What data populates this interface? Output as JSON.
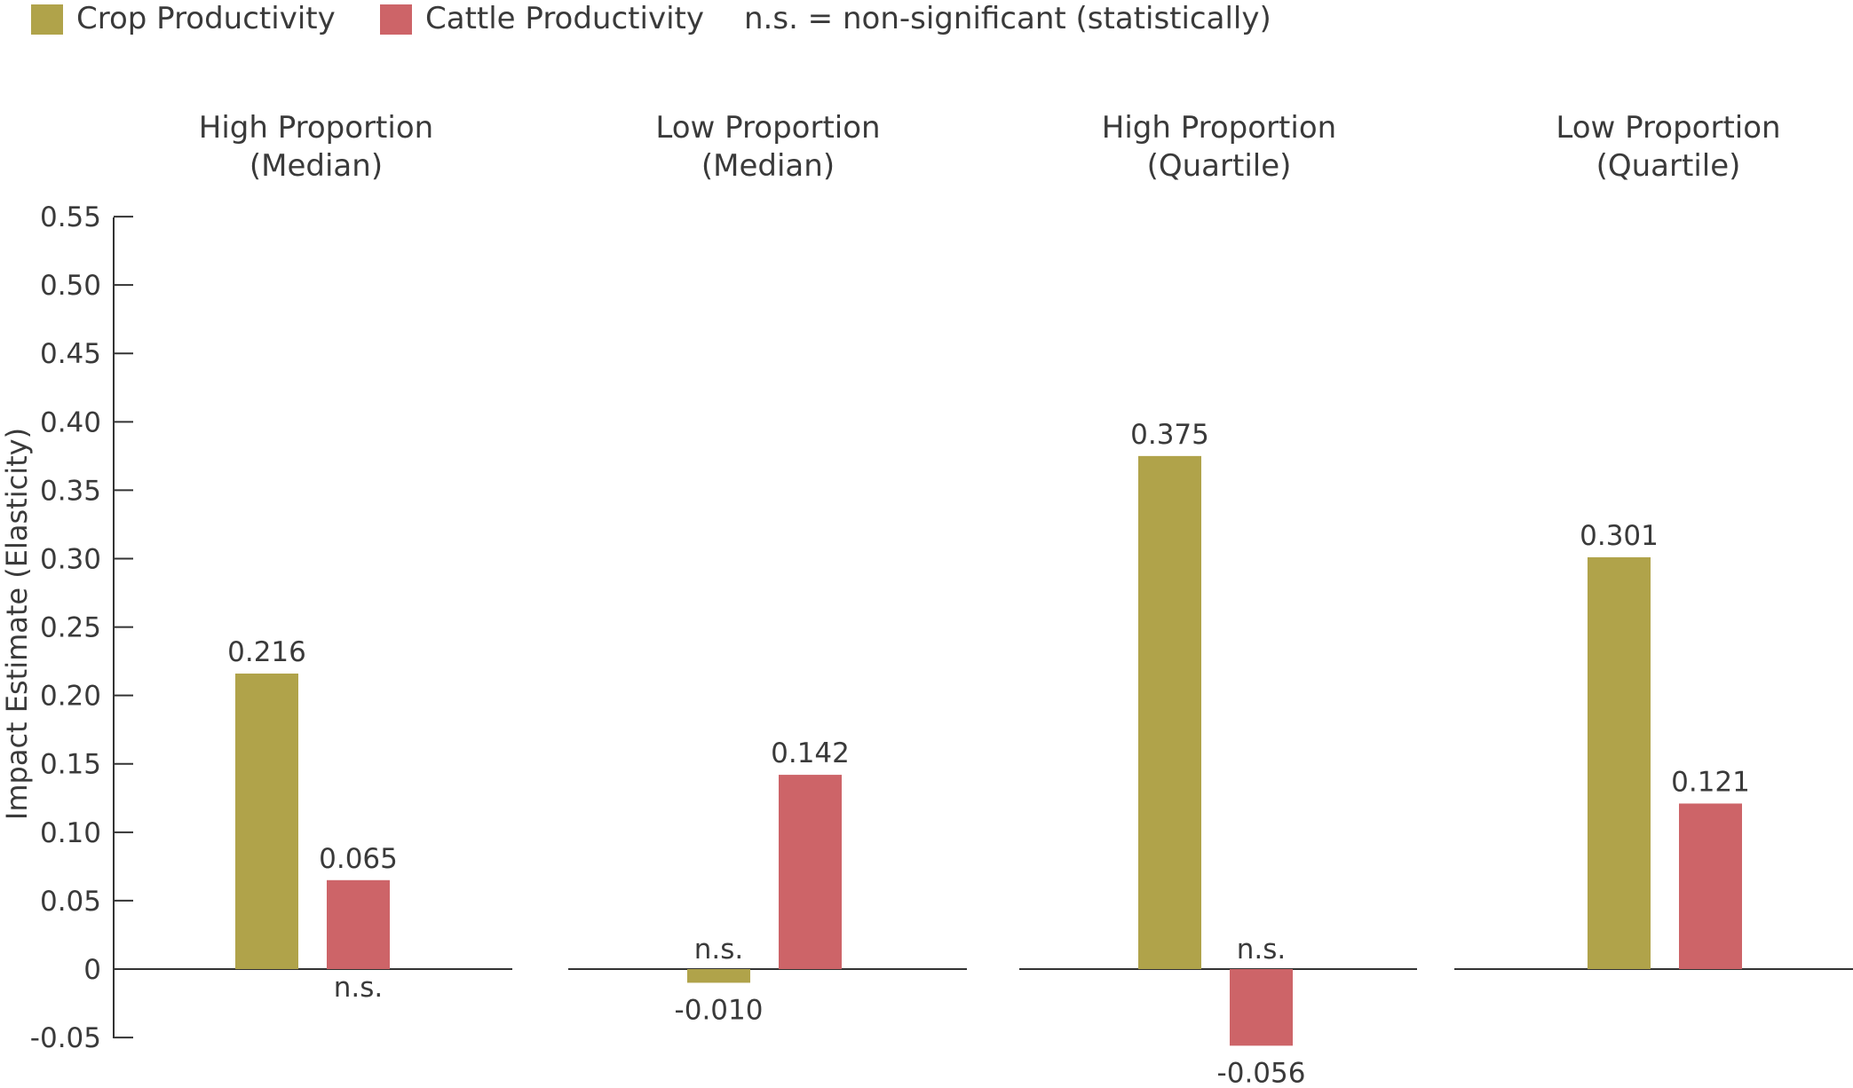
{
  "chart_data": {
    "type": "bar",
    "ylabel": "Impact Estimate (Elasticity)",
    "ylim": [
      -0.05,
      0.55
    ],
    "yticks": [
      "0.55",
      "0.50",
      "0.45",
      "0.40",
      "0.35",
      "0.30",
      "0.25",
      "0.20",
      "0.15",
      "0.10",
      "0.05",
      "0",
      "-0.05"
    ],
    "ytick_values": [
      0.55,
      0.5,
      0.45,
      0.4,
      0.35,
      0.3,
      0.25,
      0.2,
      0.15,
      0.1,
      0.05,
      0,
      -0.05
    ],
    "legend": {
      "placement": "top-left",
      "items": [
        {
          "name": "Crop Productivity",
          "color": "#b0a34a"
        },
        {
          "name": "Cattle Productivity",
          "color": "#cd6468"
        }
      ],
      "note": "n.s. = non-significant (statistically)"
    },
    "groups": [
      {
        "title_line1": "High Proportion",
        "title_line2": "(Median)",
        "bars": [
          {
            "series": "Crop Productivity",
            "value": 0.216,
            "label": "0.216",
            "ns": false
          },
          {
            "series": "Cattle Productivity",
            "value": 0.065,
            "label": "0.065",
            "ns": true
          }
        ]
      },
      {
        "title_line1": "Low Proportion",
        "title_line2": "(Median)",
        "bars": [
          {
            "series": "Crop Productivity",
            "value": -0.01,
            "label": "-0.010",
            "ns": true
          },
          {
            "series": "Cattle Productivity",
            "value": 0.142,
            "label": "0.142",
            "ns": false
          }
        ]
      },
      {
        "title_line1": "High Proportion",
        "title_line2": "(Quartile)",
        "bars": [
          {
            "series": "Crop Productivity",
            "value": 0.375,
            "label": "0.375",
            "ns": false
          },
          {
            "series": "Cattle Productivity",
            "value": -0.056,
            "label": "-0.056",
            "ns": true
          }
        ]
      },
      {
        "title_line1": "Low Proportion",
        "title_line2": "(Quartile)",
        "bars": [
          {
            "series": "Crop Productivity",
            "value": 0.301,
            "label": "0.301",
            "ns": false
          },
          {
            "series": "Cattle Productivity",
            "value": 0.121,
            "label": "0.121",
            "ns": false
          }
        ]
      }
    ],
    "ns_label": "n.s.",
    "grid": false
  }
}
